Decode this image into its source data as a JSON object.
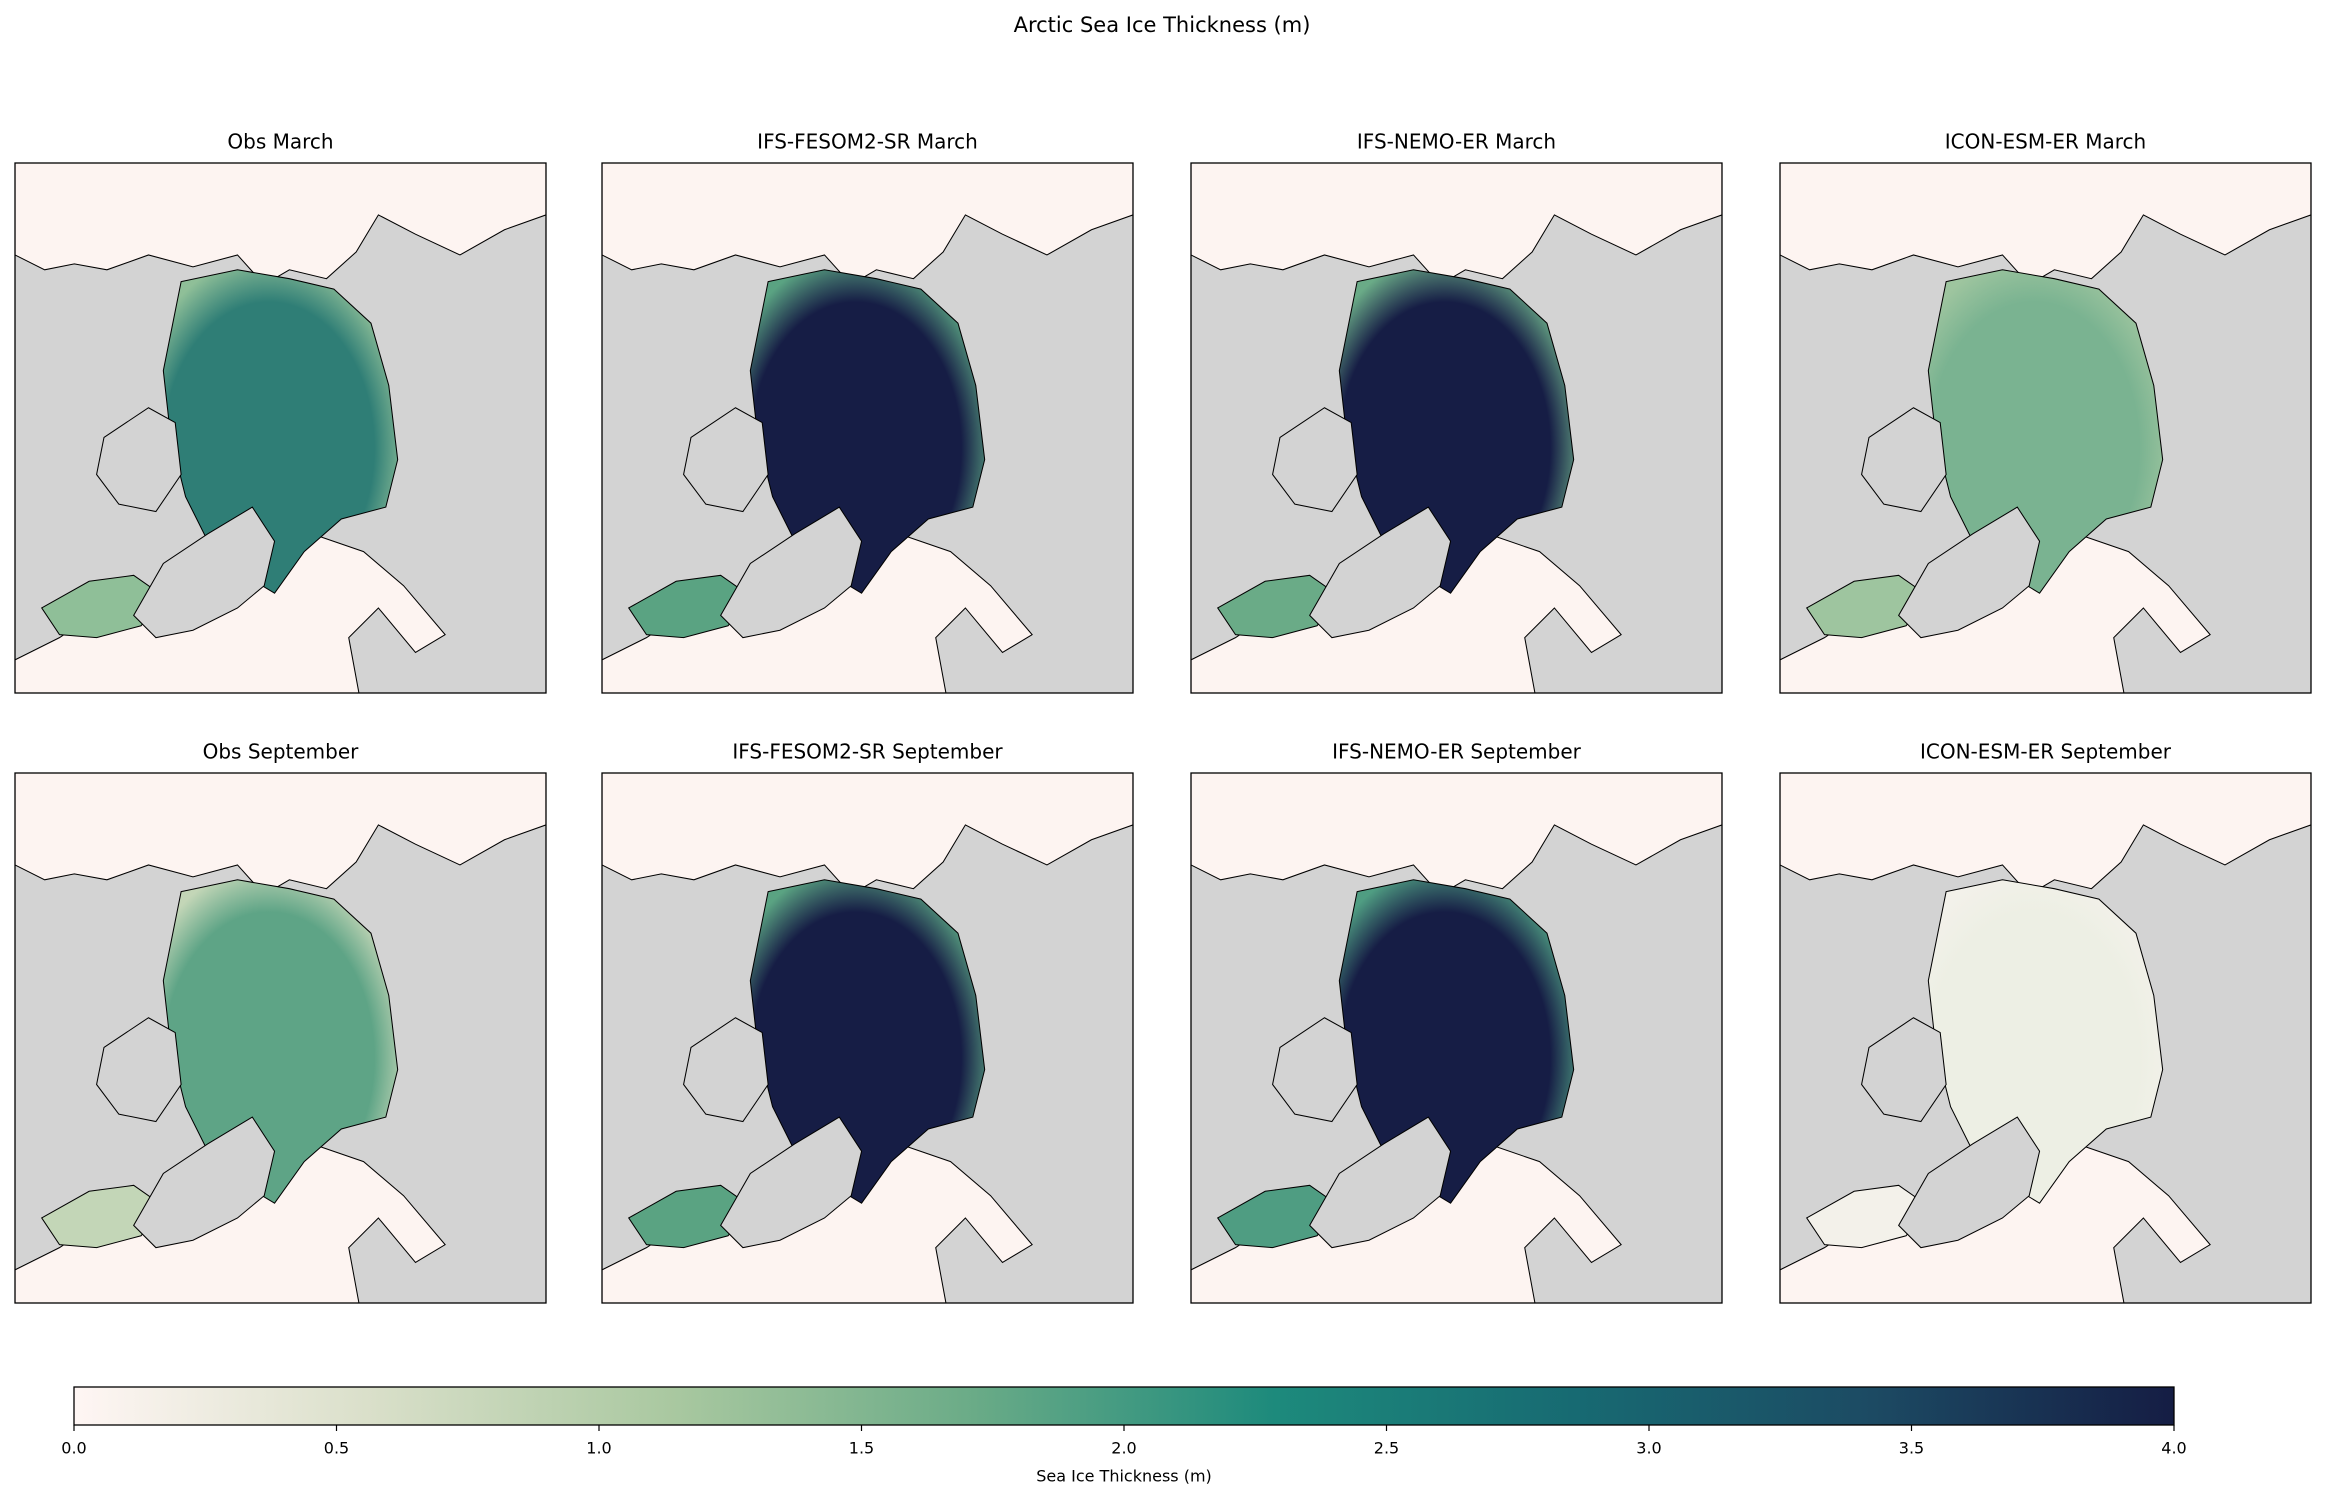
{
  "title": "Arctic Sea Ice Thickness (m)",
  "panels": [
    {
      "title": "Obs March"
    },
    {
      "title": "IFS-FESOM2-SR March"
    },
    {
      "title": "IFS-NEMO-ER March"
    },
    {
      "title": "ICON-ESM-ER March"
    },
    {
      "title": "Obs September"
    },
    {
      "title": "IFS-FESOM2-SR September"
    },
    {
      "title": "IFS-NEMO-ER September"
    },
    {
      "title": "ICON-ESM-ER September"
    }
  ],
  "colorbar": {
    "label": "Sea Ice Thickness (m)",
    "lim": [
      0,
      4
    ],
    "ticks": [
      {
        "value": 0,
        "label": "0.0"
      },
      {
        "value": 0.5,
        "label": "0.5"
      },
      {
        "value": 1,
        "label": "1.0"
      },
      {
        "value": 1.5,
        "label": "1.5"
      },
      {
        "value": 2,
        "label": "2.0"
      },
      {
        "value": 2.5,
        "label": "2.5"
      },
      {
        "value": 3,
        "label": "3.0"
      },
      {
        "value": 3.5,
        "label": "3.5"
      },
      {
        "value": 4,
        "label": "4.0"
      }
    ],
    "colormap": [
      "#fff6f4",
      "#d9dfc9",
      "#a9c8a0",
      "#6aab87",
      "#1d8a7c",
      "#176a72",
      "#1c4a63",
      "#151d44"
    ]
  }
}
